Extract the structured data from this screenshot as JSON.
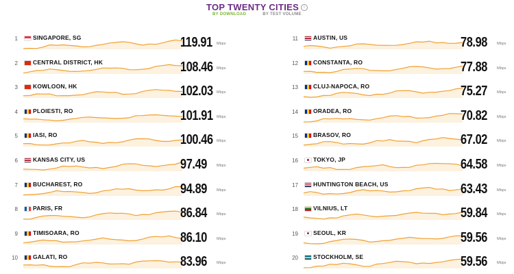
{
  "header": {
    "title": "TOP TWENTY CITIES",
    "tabs": [
      {
        "label": "BY DOWNLOAD",
        "active": true
      },
      {
        "label": "BY TEST VOLUME",
        "active": false
      }
    ]
  },
  "unit": "Mbps",
  "colors": {
    "title": "#6b2c84",
    "active_tab": "#77b52c",
    "sparkline": "#f0a030"
  },
  "cities": [
    {
      "rank": "1",
      "name": "SINGAPORE, SG",
      "value": "119.91",
      "flag": "sg"
    },
    {
      "rank": "2",
      "name": "CENTRAL DISTRICT, HK",
      "value": "108.46",
      "flag": "hk"
    },
    {
      "rank": "3",
      "name": "KOWLOON, HK",
      "value": "102.03",
      "flag": "hk"
    },
    {
      "rank": "4",
      "name": "PLOIESTI, RO",
      "value": "101.91",
      "flag": "ro"
    },
    {
      "rank": "5",
      "name": "IASI, RO",
      "value": "100.46",
      "flag": "ro"
    },
    {
      "rank": "6",
      "name": "KANSAS CITY, US",
      "value": "97.49",
      "flag": "us"
    },
    {
      "rank": "7",
      "name": "BUCHAREST, RO",
      "value": "94.89",
      "flag": "ro"
    },
    {
      "rank": "8",
      "name": "PARIS, FR",
      "value": "86.84",
      "flag": "fr"
    },
    {
      "rank": "9",
      "name": "TIMISOARA, RO",
      "value": "86.10",
      "flag": "ro"
    },
    {
      "rank": "10",
      "name": "GALATI, RO",
      "value": "83.96",
      "flag": "ro"
    },
    {
      "rank": "11",
      "name": "AUSTIN, US",
      "value": "78.98",
      "flag": "us"
    },
    {
      "rank": "12",
      "name": "CONSTANTA, RO",
      "value": "77.88",
      "flag": "ro"
    },
    {
      "rank": "13",
      "name": "CLUJ-NAPOCA, RO",
      "value": "75.27",
      "flag": "ro"
    },
    {
      "rank": "14",
      "name": "ORADEA, RO",
      "value": "70.82",
      "flag": "ro"
    },
    {
      "rank": "15",
      "name": "BRASOV, RO",
      "value": "67.02",
      "flag": "ro"
    },
    {
      "rank": "16",
      "name": "TOKYO, JP",
      "value": "64.58",
      "flag": "jp"
    },
    {
      "rank": "17",
      "name": "HUNTINGTON BEACH, US",
      "value": "63.43",
      "flag": "us"
    },
    {
      "rank": "18",
      "name": "VILNIUS, LT",
      "value": "59.84",
      "flag": "lt"
    },
    {
      "rank": "19",
      "name": "SEOUL, KR",
      "value": "59.56",
      "flag": "kr"
    },
    {
      "rank": "20",
      "name": "STOCKHOLM, SE",
      "value": "59.56",
      "flag": "se"
    }
  ]
}
